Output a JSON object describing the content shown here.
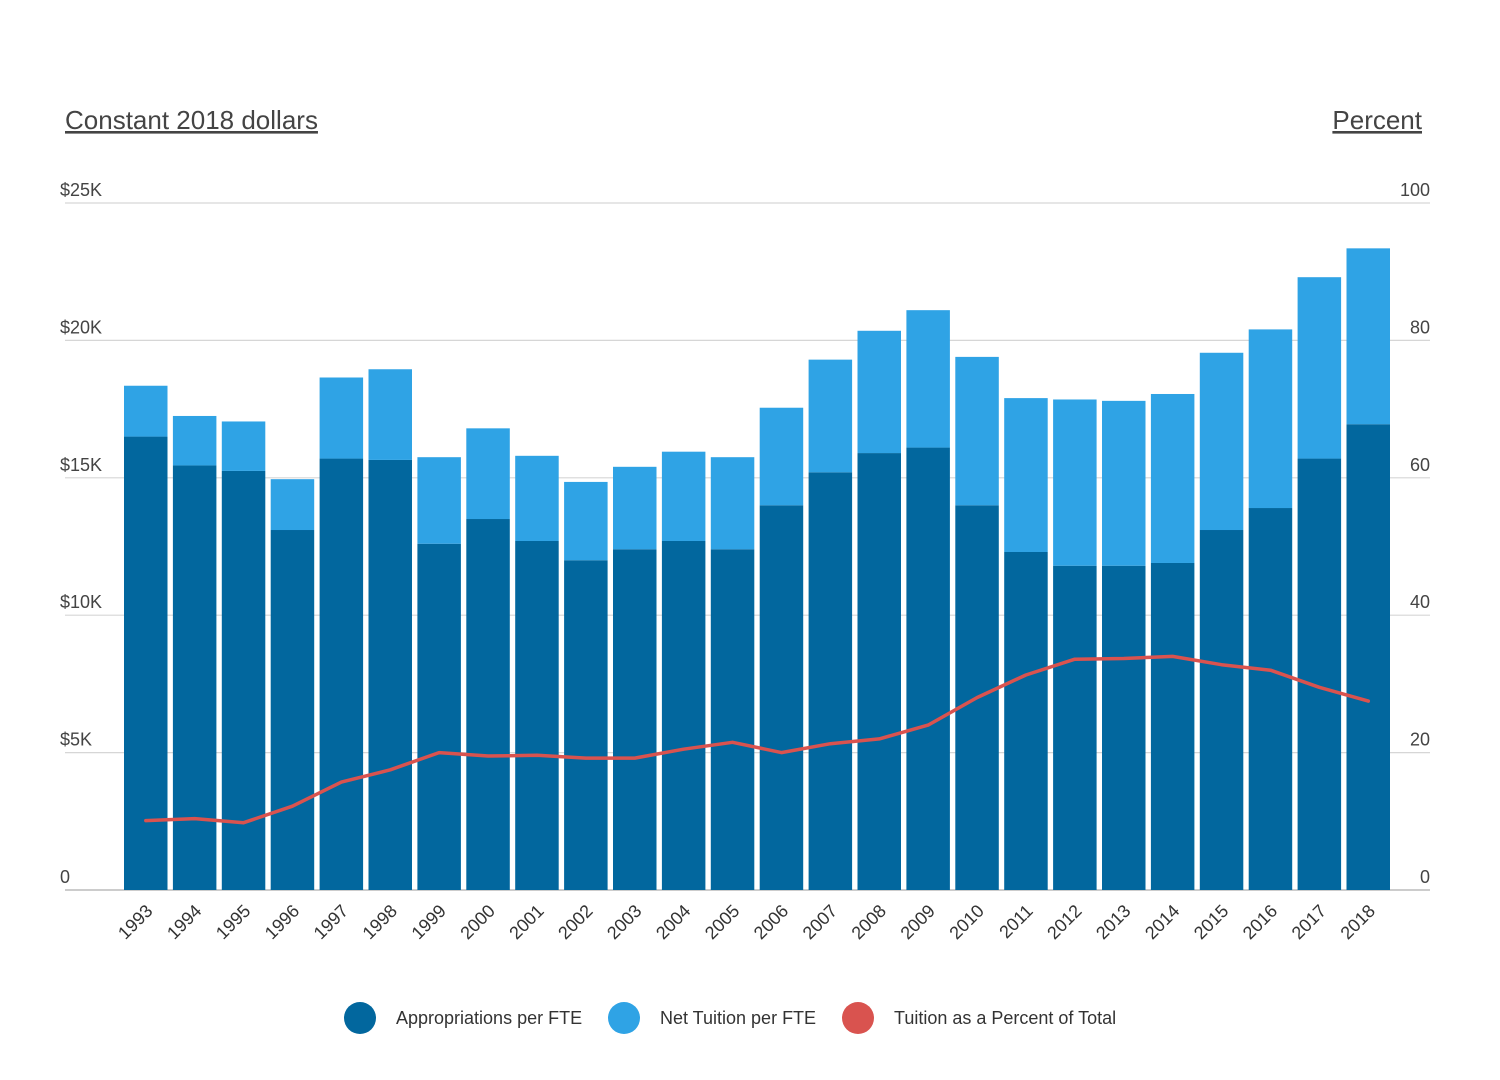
{
  "chart_data": {
    "type": "bar",
    "stacked": true,
    "left_axis_label": "Constant 2018 dollars",
    "right_axis_label": "Percent",
    "left_ticks": [
      "0",
      "$5K",
      "$10K",
      "$15K",
      "$20K",
      "$25K"
    ],
    "right_ticks": [
      "0",
      "20",
      "40",
      "60",
      "80",
      "100"
    ],
    "left_ylim": [
      0,
      25000
    ],
    "right_ylim": [
      0,
      100
    ],
    "grid": true,
    "legend_position": "bottom",
    "categories": [
      "1993",
      "1994",
      "1995",
      "1996",
      "1997",
      "1998",
      "1999",
      "2000",
      "2001",
      "2002",
      "2003",
      "2004",
      "2005",
      "2006",
      "2007",
      "2008",
      "2009",
      "2010",
      "2011",
      "2012",
      "2013",
      "2014",
      "2015",
      "2016",
      "2017",
      "2018"
    ],
    "series": [
      {
        "name": "Appropriations per FTE",
        "type": "bar",
        "axis": "left",
        "color": "#02679e",
        "values": [
          16500,
          15450,
          15250,
          13100,
          15700,
          15650,
          12600,
          13500,
          12700,
          12000,
          12400,
          12700,
          12400,
          14000,
          15200,
          15900,
          16100,
          14000,
          12300,
          11800,
          11800,
          11900,
          13100,
          13900,
          15700,
          16950
        ]
      },
      {
        "name": "Net Tuition per FTE",
        "type": "bar",
        "axis": "left",
        "color": "#2fa3e5",
        "values": [
          1850,
          1800,
          1800,
          1850,
          2950,
          3300,
          3150,
          3300,
          3100,
          2850,
          3000,
          3250,
          3350,
          3550,
          4100,
          4450,
          5000,
          5400,
          5600,
          6050,
          6000,
          6150,
          6450,
          6500,
          6600,
          6400
        ]
      },
      {
        "name": "Tuition as a Percent of Total",
        "type": "line",
        "axis": "right",
        "color": "#d9534f",
        "values": [
          10.1,
          10.4,
          9.8,
          12.2,
          15.7,
          17.5,
          20.0,
          19.5,
          19.6,
          19.2,
          19.2,
          20.5,
          21.5,
          20.0,
          21.3,
          22.0,
          24.0,
          28.0,
          31.3,
          33.6,
          33.7,
          34.0,
          32.8,
          32.0,
          29.5,
          27.5
        ]
      }
    ]
  }
}
